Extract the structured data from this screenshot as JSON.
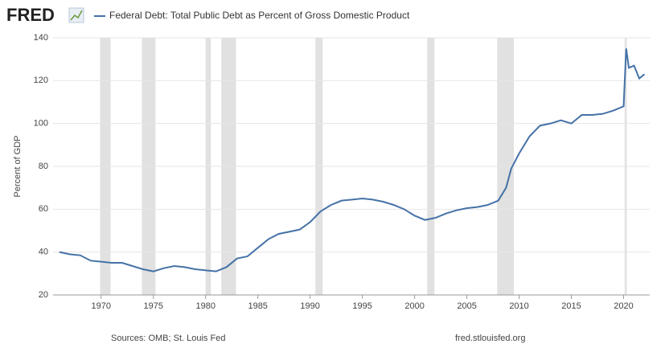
{
  "logo": "FRED",
  "chart_data": {
    "type": "line",
    "y_label": "Percent of GDP",
    "x": [
      1966,
      1967,
      1968,
      1969,
      1970,
      1971,
      1972,
      1973,
      1974,
      1975,
      1976,
      1977,
      1978,
      1979,
      1980,
      1981,
      1982,
      1983,
      1984,
      1985,
      1986,
      1987,
      1988,
      1989,
      1990,
      1991,
      1992,
      1993,
      1994,
      1995,
      1996,
      1997,
      1998,
      1999,
      2000,
      2001,
      2002,
      2003,
      2004,
      2005,
      2006,
      2007,
      2008,
      2008.75,
      2009.25,
      2010,
      2011,
      2012,
      2013,
      2014,
      2015,
      2016,
      2017,
      2018,
      2019,
      2020,
      2020.25,
      2020.5,
      2021,
      2021.5,
      2022
    ],
    "series": [
      {
        "name": "Federal Debt: Total Public Debt as Percent of Gross Domestic Product",
        "color": "#4572a7",
        "values": [
          40,
          39,
          38.5,
          36,
          35.5,
          35,
          35,
          33.5,
          32,
          31,
          32.5,
          33.5,
          33,
          32,
          31.5,
          31,
          33,
          37,
          38,
          42,
          46,
          48.5,
          49.5,
          50.5,
          54,
          59,
          62,
          64,
          64.5,
          65,
          64.5,
          63.5,
          62,
          60,
          57,
          55,
          56,
          58,
          59.5,
          60.5,
          61,
          62,
          64,
          70,
          79,
          86,
          94,
          99,
          100,
          101.5,
          100,
          104,
          104,
          104.5,
          106,
          108,
          135,
          126,
          127,
          121,
          123
        ]
      }
    ],
    "recessions": [
      [
        1969.9,
        1970.9
      ],
      [
        1973.9,
        1975.2
      ],
      [
        1980.0,
        1980.5
      ],
      [
        1981.5,
        1982.9
      ],
      [
        1990.5,
        1991.2
      ],
      [
        2001.2,
        2001.9
      ],
      [
        2007.9,
        2009.5
      ],
      [
        2020.1,
        2020.3
      ]
    ],
    "recession_color": "#e1e1e1",
    "xlim": [
      1965.4,
      2022.5
    ],
    "xticks": [
      1970,
      1975,
      1980,
      1985,
      1990,
      1995,
      2000,
      2005,
      2010,
      2015,
      2020
    ],
    "ylim": [
      20,
      140
    ],
    "yticks": [
      20,
      40,
      60,
      80,
      100,
      120,
      140
    ],
    "grid": true,
    "source": "Sources: OMB; St. Louis Fed",
    "url": "fred.stlouisfed.org"
  }
}
